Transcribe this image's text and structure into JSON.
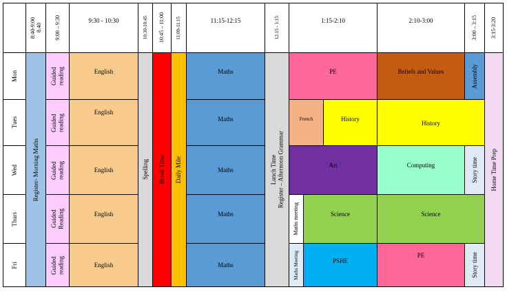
{
  "header": {
    "t0840": [
      "8:40-9:00",
      "8.40"
    ],
    "t0900": "9:00 – 9:30",
    "t0930": "9:30 - 10:30",
    "t1030": "10:30-10:45",
    "t1045": "10:45 – 11:00",
    "t1100": "11:00-11:15",
    "t1115": "11:15-12:15",
    "t1215": "12:15 - 1:15",
    "t0115": "1:15-2:10",
    "t0210": "2:10-3:00",
    "t0300": "3:00 – 3:15",
    "t0315": "3:15-3:20"
  },
  "days": [
    "Mon",
    "Tues",
    "Wed",
    "Thurs",
    "Fri"
  ],
  "spanning": {
    "register": "Register- Morning Maths",
    "spelling": "Spelling",
    "break": "Break Time",
    "daily_mile": "Daily Mile",
    "lunch": [
      "Lunch Time",
      "Register – Afternoon Grammar"
    ],
    "home_time": "Home Time Prep"
  },
  "guided": [
    [
      "Guided",
      "reading"
    ],
    [
      "Guided",
      "reading"
    ],
    [
      "Guided",
      "reading"
    ],
    [
      "Guided",
      "Reading"
    ],
    [
      "Guided",
      "reading"
    ]
  ],
  "english": [
    "English",
    "English",
    "English",
    "English",
    "English"
  ],
  "maths": [
    "Maths",
    "Maths",
    "Maths",
    "Maths",
    "Maths"
  ],
  "afternoon": {
    "mon_pe": "PE",
    "mon_beliefs": "Beliefs and Values",
    "mon_assembly": "Assembly",
    "tue_french": "French",
    "tue_history1": "History",
    "tue_history2": "History",
    "wed_art": "Art",
    "wed_computing": "Computing",
    "wed_story": "Story time",
    "thu_maths_meeting": "Maths meeting",
    "thu_science1": "Science",
    "thu_science2": "Science",
    "fri_maths_meeting": "Maths Meeting",
    "fri_pshe": "PSHE",
    "fri_pe": "PE",
    "fri_story": "Story time"
  },
  "colors": {
    "register": "#9dc3e6",
    "guided": "#ffccff",
    "english": "#f8cb8d",
    "spelling": "#d9d9d9",
    "break": "#ff0000",
    "daily_mile": "#ffc000",
    "maths": "#5b9bd5",
    "lunch": "#d9d9d9",
    "pe": "#ff6699",
    "beliefs": "#c55a11",
    "assembly": "#5b9bd5",
    "french": "#f4b183",
    "history": "#ffff00",
    "art": "#7030a0",
    "computing": "#99ffcc",
    "story": "#deebf7",
    "science": "#92d050",
    "pshe": "#00b0f0",
    "home": "#f2d9f2"
  }
}
